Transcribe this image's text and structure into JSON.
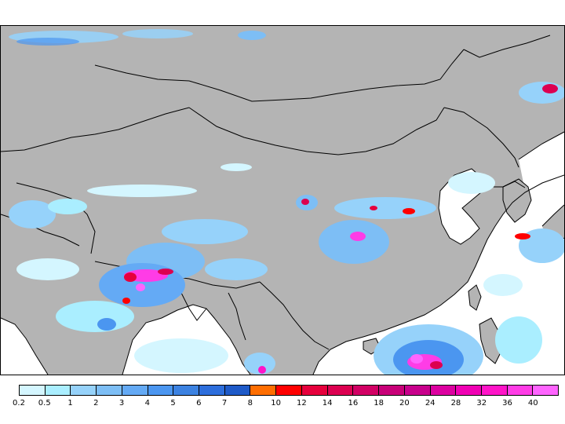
{
  "legend": {
    "labels": [
      "0.2",
      "0.5",
      "1",
      "2",
      "3",
      "4",
      "5",
      "6",
      "7",
      "8",
      "10",
      "12",
      "14",
      "16",
      "18",
      "20",
      "24",
      "28",
      "32",
      "36",
      "40"
    ],
    "colors": [
      "#d4f6ff",
      "#aaeeff",
      "#96d2fa",
      "#7dbef5",
      "#64aaf5",
      "#4b96f0",
      "#3c82e1",
      "#2d6edc",
      "#1e5ac8",
      "#ff6e00",
      "#ff0000",
      "#e6003c",
      "#dc0050",
      "#d20064",
      "#c80078",
      "#c8008c",
      "#dc00a0",
      "#f000b4",
      "#ff14c8",
      "#ff3ce6",
      "#ff64ff"
    ]
  },
  "map": {
    "land_color": "#b4b4b4",
    "water_color": "#ffffff",
    "boundary_color": "#000000"
  }
}
